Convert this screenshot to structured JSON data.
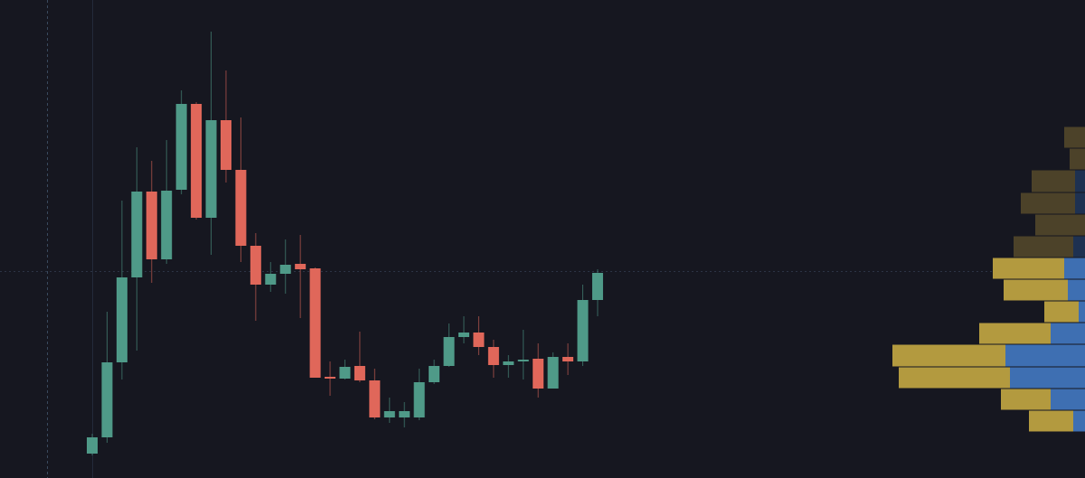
{
  "chart_data": {
    "type": "candlestick",
    "ylim": [
      0,
      529
    ],
    "up_color": "#4f9a88",
    "down_color": "#e0675a",
    "open": [
      27,
      45,
      128,
      222,
      317,
      242,
      319,
      414,
      288,
      396,
      341,
      257,
      214,
      226,
      237,
      232,
      112,
      110,
      124,
      108,
      67,
      67,
      67,
      106,
      124,
      156,
      161,
      145,
      125,
      129,
      132,
      99,
      134,
      129,
      197
    ],
    "high": [
      49,
      184,
      307,
      366,
      351,
      374,
      429,
      416,
      494,
      451,
      399,
      271,
      239,
      264,
      269,
      233,
      129,
      131,
      162,
      121,
      89,
      84,
      121,
      131,
      171,
      179,
      179,
      153,
      136,
      164,
      149,
      139,
      149,
      214,
      231
    ],
    "low": [
      25,
      39,
      109,
      141,
      216,
      237,
      314,
      286,
      247,
      327,
      239,
      174,
      206,
      204,
      177,
      111,
      91,
      109,
      106,
      65,
      61,
      56,
      64,
      104,
      123,
      149,
      136,
      111,
      111,
      109,
      89,
      99,
      114,
      124,
      179
    ],
    "close": [
      45,
      128,
      222,
      317,
      242,
      318,
      414,
      288,
      396,
      341,
      257,
      214,
      226,
      236,
      231,
      111,
      110,
      123,
      108,
      67,
      74,
      74,
      106,
      124,
      156,
      161,
      145,
      125,
      129,
      131,
      99,
      134,
      129,
      197,
      227
    ],
    "profile": {
      "bins": [
        389,
        365,
        341,
        316,
        292,
        268,
        244,
        220,
        196,
        172,
        148,
        123,
        99,
        75,
        51
      ],
      "up": [
        23,
        17,
        48,
        60,
        55,
        66,
        79,
        71,
        38,
        79,
        125,
        123,
        55,
        49
      ],
      "down": [
        0,
        0,
        11,
        11,
        0,
        13,
        23,
        19,
        7,
        38,
        88,
        83,
        38,
        13
      ],
      "value_area": [
        51,
        244
      ],
      "up_color": "#b39a3f",
      "down_color": "#3e6fb2",
      "up_dim_color": "#4c4229",
      "down_dim_color": "#1e3151"
    }
  }
}
